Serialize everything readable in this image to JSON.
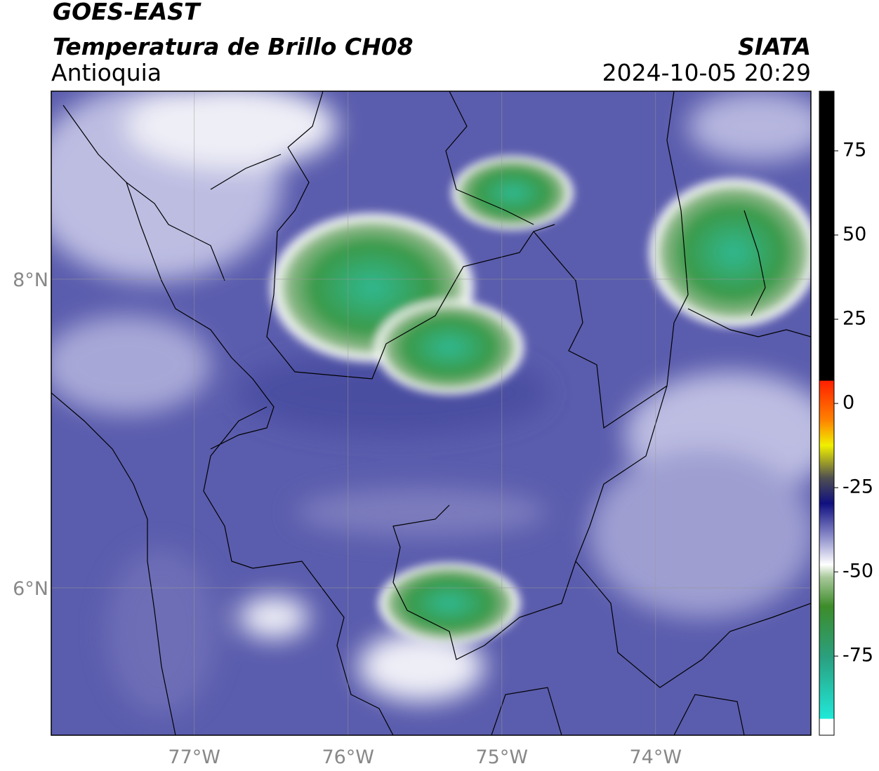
{
  "header": {
    "satellite": "GOES-EAST",
    "product": "Temperatura de Brillo CH08",
    "region": "Antioquia",
    "source": "SIATA",
    "datetime": "2024-10-05 20:29"
  },
  "map": {
    "lat_range": [
      5.045,
      9.218
    ],
    "lon_range": [
      -77.93,
      -72.99
    ],
    "lat_ticks": [
      {
        "value": 8,
        "label": "8°N"
      },
      {
        "value": 6,
        "label": "6°N"
      }
    ],
    "lon_ticks": [
      {
        "value": -77,
        "label": "77°W"
      },
      {
        "value": -76,
        "label": "76°W"
      },
      {
        "value": -75,
        "label": "75°W"
      },
      {
        "value": -74,
        "label": "74°W"
      }
    ]
  },
  "colorbar": {
    "range": [
      -98.5,
      92.7
    ],
    "ticks": [
      75,
      50,
      25,
      0,
      -25,
      -50,
      -75
    ]
  }
}
